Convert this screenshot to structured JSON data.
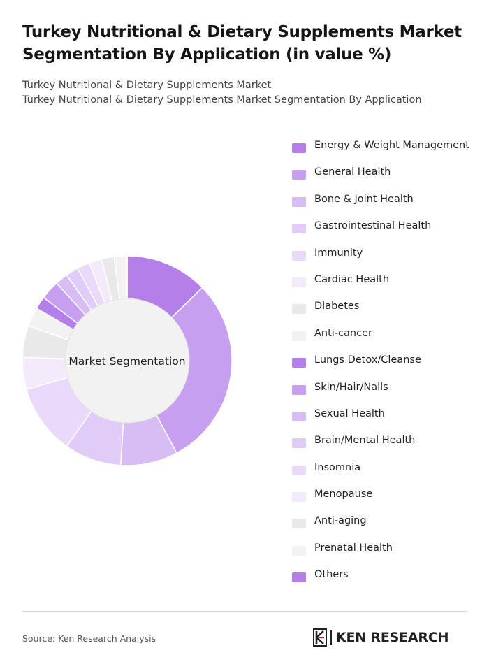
{
  "title": "Turkey Nutritional & Dietary Supplements Market Segmentation By Application (in value %)",
  "subtitle_1": "Turkey Nutritional & Dietary Supplements Market",
  "subtitle_2": "Turkey Nutritional & Dietary Supplements Market Segmentation By Application",
  "source": "Source: Ken Research Analysis",
  "logo_text": "KEN RESEARCH",
  "chart_data": {
    "type": "pie",
    "variant": "donut",
    "center_label": "Market Segmentation",
    "legend_position": "right",
    "categories": [
      "Energy & Weight Management",
      "General Health",
      "Bone & Joint Health",
      "Gastrointestinal Health",
      "Immunity",
      "Cardiac Health",
      "Diabetes",
      "Anti-cancer",
      "Lungs Detox/Cleanse",
      "Skin/Hair/Nails",
      "Sexual Health",
      "Brain/Mental Health",
      "Insomnia",
      "Menopause",
      "Anti-aging",
      "Prenatal Health",
      "Others"
    ],
    "values": [
      13,
      30,
      9,
      9,
      11,
      5,
      5,
      3,
      2,
      3,
      2,
      2,
      2,
      2,
      2,
      2,
      0
    ],
    "colors": [
      "#b57fea",
      "#c79ff0",
      "#d8bdf5",
      "#e0ccf7",
      "#ead9fa",
      "#f3ebfc",
      "#e9e9e9",
      "#f2f2f2",
      "#b57fea",
      "#c79ff0",
      "#d8bdf5",
      "#e0ccf7",
      "#ead9fa",
      "#f3ebfc",
      "#e9e9e9",
      "#f2f2f2",
      "#b57fea"
    ]
  }
}
